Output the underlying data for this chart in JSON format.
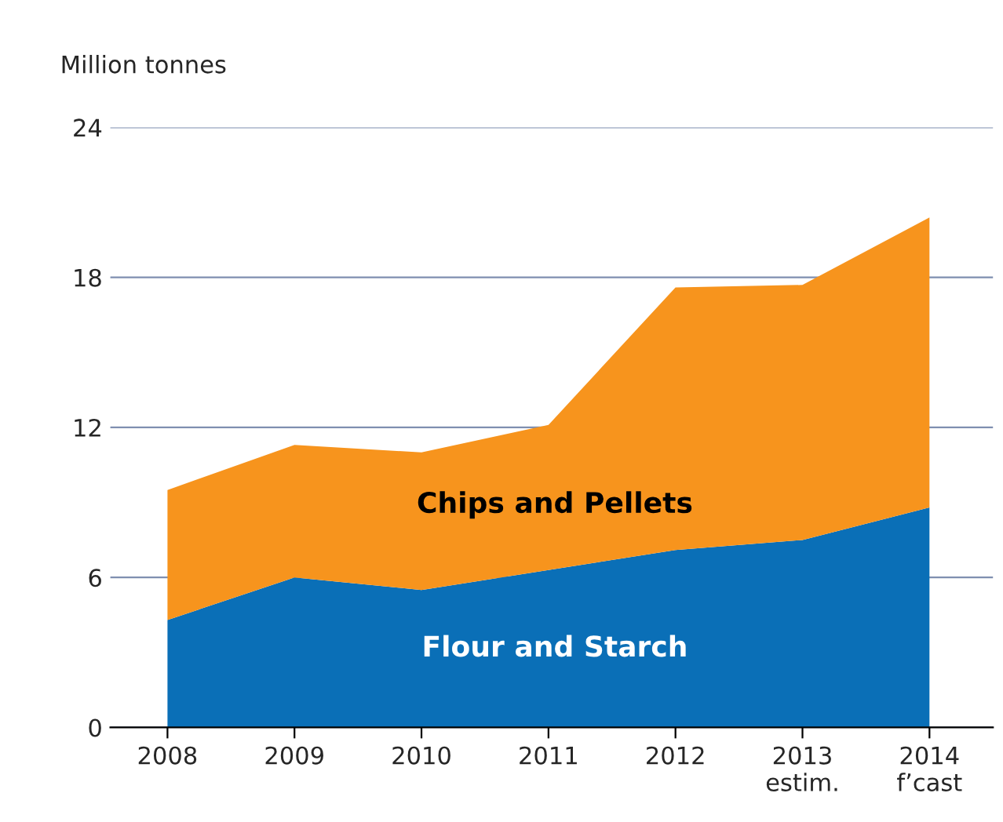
{
  "chart_data": {
    "type": "area",
    "stacked": true,
    "ylabel": "Million tonnes",
    "categories": [
      "2008",
      "2009",
      "2010",
      "2011",
      "2012",
      "2013\nestim.",
      "2014\nf’cast"
    ],
    "series": [
      {
        "name": "Flour and Starch",
        "color": "#0a6fb7",
        "values": [
          4.3,
          6.0,
          5.5,
          6.3,
          7.1,
          7.5,
          8.8
        ]
      },
      {
        "name": "Chips and Pellets",
        "color": "#f7941d",
        "values": [
          5.2,
          5.3,
          5.5,
          5.8,
          10.5,
          10.2,
          11.6
        ]
      }
    ],
    "ylim": [
      0,
      24
    ],
    "yticks": [
      0,
      6,
      12,
      18,
      24
    ],
    "grid": "y",
    "legend": false
  }
}
